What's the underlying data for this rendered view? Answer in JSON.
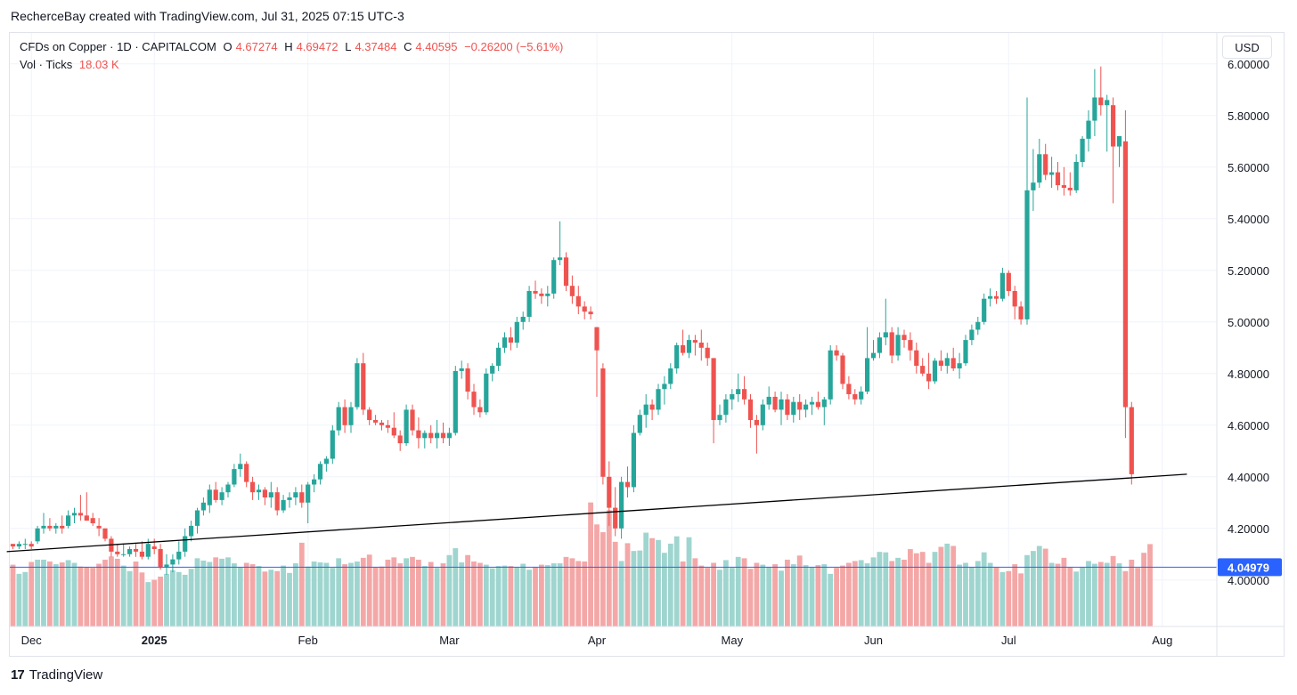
{
  "caption": "RecherceBay created with TradingView.com, Jul 31, 2025 07:15 UTC-3",
  "legend": {
    "symbol": "CFDs on Copper · 1D · CAPITALCOM",
    "o_label": "O",
    "o_value": "4.67274",
    "h_label": "H",
    "h_value": "4.69472",
    "l_label": "L",
    "l_value": "4.37484",
    "c_label": "C",
    "c_value": "4.40595",
    "change": "−0.26200 (−5.61%)",
    "vol_label": "Vol · Ticks",
    "vol_value": "18.03 K"
  },
  "currency": "USD",
  "footer": {
    "logo_mark": "17",
    "brand": "TradingView"
  },
  "colors": {
    "up": "#26a69a",
    "down": "#ef5350",
    "up_vol": "#9fd5cf",
    "down_vol": "#f4a7a7",
    "line_blue": "#2962ff",
    "trend": "#000000"
  },
  "chart_data": {
    "type": "candlestick",
    "title": "CFDs on Copper · 1D · CAPITALCOM",
    "ylim": [
      3.82,
      6.12
    ],
    "y_ticks": [
      "6.00000",
      "5.80000",
      "5.60000",
      "5.40000",
      "5.20000",
      "5.00000",
      "4.80000",
      "4.60000",
      "4.40000",
      "4.20000",
      "4.00000"
    ],
    "y_tick_values": [
      6.0,
      5.8,
      5.6,
      5.4,
      5.2,
      5.0,
      4.8,
      4.6,
      4.4,
      4.2,
      4.0
    ],
    "x_labels": [
      "Dec",
      "2025",
      "Feb",
      "Mar",
      "Apr",
      "May",
      "Jun",
      "Jul",
      "Aug"
    ],
    "x_label_bars": [
      3,
      23,
      48,
      71,
      95,
      117,
      140,
      162,
      187
    ],
    "price_line": {
      "value": 4.04979,
      "label": "4.04979"
    },
    "trendline": {
      "start_bar": -1,
      "start_value": 4.11,
      "end_bar": 191,
      "end_value": 4.41
    },
    "candles": [
      [
        4.14,
        4.14,
        4.12,
        4.13
      ],
      [
        4.13,
        4.15,
        4.12,
        4.14
      ],
      [
        4.14,
        4.16,
        4.12,
        4.14
      ],
      [
        4.14,
        4.15,
        4.12,
        4.13
      ],
      [
        4.15,
        4.21,
        4.14,
        4.2
      ],
      [
        4.2,
        4.26,
        4.18,
        4.21
      ],
      [
        4.21,
        4.24,
        4.19,
        4.2
      ],
      [
        4.2,
        4.22,
        4.18,
        4.21
      ],
      [
        4.21,
        4.25,
        4.18,
        4.2
      ],
      [
        4.21,
        4.27,
        4.2,
        4.25
      ],
      [
        4.25,
        4.28,
        4.22,
        4.26
      ],
      [
        4.26,
        4.33,
        4.23,
        4.25
      ],
      [
        4.25,
        4.34,
        4.23,
        4.23
      ],
      [
        4.24,
        4.26,
        4.21,
        4.22
      ],
      [
        4.21,
        4.24,
        4.17,
        4.2
      ],
      [
        4.2,
        4.2,
        4.15,
        4.16
      ],
      [
        4.16,
        4.17,
        4.09,
        4.11
      ],
      [
        4.11,
        4.14,
        4.09,
        4.1
      ],
      [
        4.1,
        4.14,
        4.09,
        4.1
      ],
      [
        4.1,
        4.13,
        4.09,
        4.12
      ],
      [
        4.12,
        4.14,
        4.09,
        4.11
      ],
      [
        4.11,
        4.15,
        4.08,
        4.09
      ],
      [
        4.09,
        4.16,
        4.08,
        4.14
      ],
      [
        4.13,
        4.16,
        4.1,
        4.12
      ],
      [
        4.12,
        4.14,
        4.04,
        4.05
      ],
      [
        4.05,
        4.1,
        4.02,
        4.06
      ],
      [
        4.06,
        4.1,
        4.03,
        4.08
      ],
      [
        4.08,
        4.15,
        4.06,
        4.11
      ],
      [
        4.11,
        4.2,
        4.09,
        4.17
      ],
      [
        4.17,
        4.23,
        4.15,
        4.21
      ],
      [
        4.21,
        4.28,
        4.18,
        4.27
      ],
      [
        4.27,
        4.32,
        4.25,
        4.3
      ],
      [
        4.29,
        4.37,
        4.26,
        4.35
      ],
      [
        4.35,
        4.38,
        4.3,
        4.31
      ],
      [
        4.31,
        4.36,
        4.29,
        4.34
      ],
      [
        4.34,
        4.38,
        4.32,
        4.37
      ],
      [
        4.37,
        4.45,
        4.36,
        4.43
      ],
      [
        4.43,
        4.49,
        4.4,
        4.45
      ],
      [
        4.45,
        4.46,
        4.36,
        4.38
      ],
      [
        4.38,
        4.4,
        4.31,
        4.34
      ],
      [
        4.34,
        4.37,
        4.31,
        4.35
      ],
      [
        4.35,
        4.36,
        4.29,
        4.32
      ],
      [
        4.32,
        4.38,
        4.28,
        4.34
      ],
      [
        4.34,
        4.36,
        4.25,
        4.27
      ],
      [
        4.27,
        4.33,
        4.26,
        4.31
      ],
      [
        4.31,
        4.34,
        4.28,
        4.32
      ],
      [
        4.32,
        4.36,
        4.29,
        4.34
      ],
      [
        4.34,
        4.37,
        4.28,
        4.3
      ],
      [
        4.3,
        4.38,
        4.22,
        4.37
      ],
      [
        4.37,
        4.41,
        4.34,
        4.39
      ],
      [
        4.39,
        4.46,
        4.37,
        4.45
      ],
      [
        4.45,
        4.48,
        4.42,
        4.47
      ],
      [
        4.47,
        4.6,
        4.45,
        4.58
      ],
      [
        4.58,
        4.69,
        4.56,
        4.67
      ],
      [
        4.67,
        4.7,
        4.57,
        4.6
      ],
      [
        4.6,
        4.69,
        4.57,
        4.67
      ],
      [
        4.67,
        4.86,
        4.66,
        4.84
      ],
      [
        4.84,
        4.88,
        4.64,
        4.66
      ],
      [
        4.66,
        4.67,
        4.6,
        4.62
      ],
      [
        4.62,
        4.64,
        4.6,
        4.61
      ],
      [
        4.61,
        4.62,
        4.58,
        4.6
      ],
      [
        4.6,
        4.62,
        4.57,
        4.59
      ],
      [
        4.59,
        4.65,
        4.55,
        4.56
      ],
      [
        4.56,
        4.58,
        4.5,
        4.53
      ],
      [
        4.53,
        4.68,
        4.52,
        4.66
      ],
      [
        4.66,
        4.68,
        4.56,
        4.58
      ],
      [
        4.58,
        4.63,
        4.51,
        4.55
      ],
      [
        4.55,
        4.58,
        4.51,
        4.57
      ],
      [
        4.57,
        4.6,
        4.53,
        4.55
      ],
      [
        4.55,
        4.62,
        4.51,
        4.57
      ],
      [
        4.57,
        4.61,
        4.53,
        4.55
      ],
      [
        4.55,
        4.59,
        4.52,
        4.57
      ],
      [
        4.57,
        4.83,
        4.56,
        4.81
      ],
      [
        4.81,
        4.85,
        4.78,
        4.82
      ],
      [
        4.82,
        4.84,
        4.7,
        4.73
      ],
      [
        4.73,
        4.76,
        4.64,
        4.67
      ],
      [
        4.67,
        4.7,
        4.63,
        4.65
      ],
      [
        4.65,
        4.82,
        4.64,
        4.8
      ],
      [
        4.8,
        4.84,
        4.77,
        4.83
      ],
      [
        4.83,
        4.92,
        4.81,
        4.9
      ],
      [
        4.9,
        4.96,
        4.88,
        4.94
      ],
      [
        4.94,
        4.98,
        4.89,
        4.92
      ],
      [
        4.92,
        5.02,
        4.9,
        5.0
      ],
      [
        5.0,
        5.04,
        4.97,
        5.02
      ],
      [
        5.02,
        5.14,
        5.0,
        5.12
      ],
      [
        5.12,
        5.16,
        5.09,
        5.11
      ],
      [
        5.11,
        5.13,
        5.07,
        5.1
      ],
      [
        5.1,
        5.14,
        5.06,
        5.11
      ],
      [
        5.11,
        5.25,
        5.09,
        5.24
      ],
      [
        5.24,
        5.39,
        5.22,
        5.25
      ],
      [
        5.25,
        5.27,
        5.12,
        5.14
      ],
      [
        5.14,
        5.18,
        5.07,
        5.1
      ],
      [
        5.1,
        5.14,
        5.03,
        5.06
      ],
      [
        5.06,
        5.08,
        5.01,
        5.04
      ],
      [
        5.04,
        5.06,
        5.01,
        5.03
      ],
      [
        4.98,
        4.98,
        4.71,
        4.89
      ],
      [
        4.82,
        4.84,
        4.37,
        4.4
      ],
      [
        4.4,
        4.46,
        4.21,
        4.28
      ],
      [
        4.28,
        4.36,
        4.17,
        4.2
      ],
      [
        4.2,
        4.4,
        4.16,
        4.38
      ],
      [
        4.38,
        4.44,
        4.32,
        4.36
      ],
      [
        4.36,
        4.6,
        4.34,
        4.57
      ],
      [
        4.57,
        4.66,
        4.56,
        4.64
      ],
      [
        4.64,
        4.72,
        4.59,
        4.68
      ],
      [
        4.68,
        4.7,
        4.62,
        4.66
      ],
      [
        4.66,
        4.76,
        4.64,
        4.74
      ],
      [
        4.74,
        4.79,
        4.68,
        4.76
      ],
      [
        4.76,
        4.84,
        4.74,
        4.82
      ],
      [
        4.82,
        4.92,
        4.8,
        4.91
      ],
      [
        4.91,
        4.97,
        4.87,
        4.88
      ],
      [
        4.88,
        4.95,
        4.86,
        4.93
      ],
      [
        4.93,
        4.95,
        4.87,
        4.92
      ],
      [
        4.92,
        4.97,
        4.85,
        4.9
      ],
      [
        4.9,
        4.92,
        4.83,
        4.86
      ],
      [
        4.86,
        4.86,
        4.53,
        4.62
      ],
      [
        4.62,
        4.68,
        4.6,
        4.64
      ],
      [
        4.64,
        4.72,
        4.61,
        4.7
      ],
      [
        4.7,
        4.74,
        4.66,
        4.72
      ],
      [
        4.72,
        4.8,
        4.69,
        4.74
      ],
      [
        4.74,
        4.79,
        4.68,
        4.7
      ],
      [
        4.7,
        4.72,
        4.59,
        4.62
      ],
      [
        4.62,
        4.64,
        4.49,
        4.6
      ],
      [
        4.6,
        4.7,
        4.58,
        4.68
      ],
      [
        4.68,
        4.75,
        4.66,
        4.71
      ],
      [
        4.71,
        4.73,
        4.65,
        4.66
      ],
      [
        4.66,
        4.73,
        4.6,
        4.7
      ],
      [
        4.7,
        4.72,
        4.62,
        4.64
      ],
      [
        4.64,
        4.71,
        4.61,
        4.69
      ],
      [
        4.69,
        4.72,
        4.62,
        4.66
      ],
      [
        4.66,
        4.7,
        4.63,
        4.68
      ],
      [
        4.68,
        4.71,
        4.64,
        4.69
      ],
      [
        4.69,
        4.73,
        4.66,
        4.67
      ],
      [
        4.67,
        4.71,
        4.6,
        4.7
      ],
      [
        4.7,
        4.91,
        4.68,
        4.89
      ],
      [
        4.89,
        4.91,
        4.85,
        4.87
      ],
      [
        4.87,
        4.88,
        4.74,
        4.76
      ],
      [
        4.76,
        4.79,
        4.7,
        4.72
      ],
      [
        4.72,
        4.74,
        4.68,
        4.7
      ],
      [
        4.7,
        4.75,
        4.68,
        4.73
      ],
      [
        4.73,
        4.98,
        4.72,
        4.86
      ],
      [
        4.86,
        4.93,
        4.85,
        4.88
      ],
      [
        4.88,
        4.96,
        4.86,
        4.94
      ],
      [
        4.94,
        5.09,
        4.91,
        4.96
      ],
      [
        4.96,
        4.98,
        4.84,
        4.87
      ],
      [
        4.87,
        4.98,
        4.85,
        4.95
      ],
      [
        4.95,
        4.97,
        4.9,
        4.93
      ],
      [
        4.93,
        4.96,
        4.85,
        4.89
      ],
      [
        4.89,
        4.92,
        4.8,
        4.83
      ],
      [
        4.83,
        4.86,
        4.79,
        4.8
      ],
      [
        4.8,
        4.88,
        4.74,
        4.77
      ],
      [
        4.77,
        4.86,
        4.76,
        4.85
      ],
      [
        4.85,
        4.89,
        4.81,
        4.83
      ],
      [
        4.83,
        4.88,
        4.8,
        4.86
      ],
      [
        4.86,
        4.9,
        4.81,
        4.82
      ],
      [
        4.82,
        4.88,
        4.78,
        4.84
      ],
      [
        4.84,
        4.95,
        4.83,
        4.93
      ],
      [
        4.93,
        4.99,
        4.91,
        4.97
      ],
      [
        4.97,
        5.02,
        4.95,
        5.0
      ],
      [
        5.0,
        5.11,
        4.99,
        5.09
      ],
      [
        5.09,
        5.13,
        5.06,
        5.1
      ],
      [
        5.1,
        5.12,
        5.07,
        5.09
      ],
      [
        5.09,
        5.21,
        5.08,
        5.19
      ],
      [
        5.19,
        5.2,
        5.1,
        5.12
      ],
      [
        5.12,
        5.14,
        5.01,
        5.06
      ],
      [
        5.06,
        5.08,
        4.99,
        5.01
      ],
      [
        5.01,
        5.87,
        4.99,
        5.51
      ],
      [
        5.51,
        5.67,
        5.43,
        5.54
      ],
      [
        5.54,
        5.71,
        5.52,
        5.65
      ],
      [
        5.65,
        5.69,
        5.55,
        5.57
      ],
      [
        5.57,
        5.64,
        5.52,
        5.58
      ],
      [
        5.58,
        5.62,
        5.51,
        5.53
      ],
      [
        5.53,
        5.6,
        5.49,
        5.52
      ],
      [
        5.52,
        5.58,
        5.49,
        5.51
      ],
      [
        5.51,
        5.65,
        5.5,
        5.62
      ],
      [
        5.62,
        5.72,
        5.6,
        5.71
      ],
      [
        5.71,
        5.82,
        5.66,
        5.78
      ],
      [
        5.78,
        5.98,
        5.72,
        5.87
      ],
      [
        5.87,
        5.99,
        5.8,
        5.84
      ],
      [
        5.84,
        5.88,
        5.66,
        5.86
      ],
      [
        5.84,
        5.87,
        5.46,
        5.68
      ],
      [
        5.68,
        5.72,
        5.6,
        5.72
      ],
      [
        5.7,
        5.82,
        4.55,
        4.67
      ],
      [
        4.67,
        4.69,
        4.37,
        4.41
      ]
    ],
    "volumes": [
      13.5,
      11.5,
      11.9,
      14.1,
      14.6,
      14.6,
      14.2,
      13.6,
      14.0,
      14.5,
      13.9,
      13.1,
      13.0,
      12.8,
      13.7,
      14.6,
      15.3,
      14.8,
      13.3,
      12.1,
      14.2,
      11.8,
      9.7,
      10.2,
      10.9,
      11.5,
      12.3,
      11.9,
      11.3,
      12.6,
      14.9,
      14.4,
      14.1,
      15.1,
      14.8,
      15.1,
      13.8,
      13.0,
      13.9,
      13.6,
      13.2,
      12.0,
      12.4,
      12.1,
      13.3,
      11.7,
      13.8,
      18.3,
      13.1,
      14.2,
      14.0,
      13.9,
      12.8,
      14.9,
      13.6,
      13.9,
      14.2,
      15.0,
      15.7,
      12.9,
      13.1,
      14.6,
      15.1,
      13.8,
      14.9,
      15.2,
      14.6,
      13.2,
      14.1,
      12.8,
      13.8,
      15.6,
      17.1,
      14.0,
      15.6,
      14.2,
      13.9,
      13.5,
      12.7,
      13.2,
      13.3,
      13.2,
      12.9,
      13.7,
      12.4,
      12.9,
      13.5,
      13.4,
      13.8,
      13.8,
      15.2,
      14.9,
      14.3,
      14.2,
      27.1,
      22.3,
      20.6,
      25.4,
      18.5,
      14.3,
      18.2,
      16.5,
      16.6,
      20.5,
      19.3,
      18.9,
      16.1,
      18.1,
      19.7,
      14.2,
      19.5,
      14.9,
      13.3,
      12.8,
      13.9,
      12.4,
      14.5,
      12.8,
      15.2,
      14.9,
      12.6,
      13.9,
      13.5,
      12.9,
      13.6,
      12.2,
      14.6,
      13.6,
      15.5,
      13.4,
      12.9,
      13.4,
      13.6,
      11.5,
      12.8,
      13.3,
      13.9,
      14.3,
      14.5,
      13.8,
      15.1,
      16.3,
      16.2,
      14.3,
      15.0,
      14.6,
      16.9,
      16.0,
      16.3,
      13.9,
      16.3,
      17.4,
      18.1,
      17.6,
      13.5,
      13.9,
      13.0,
      14.3,
      16.2,
      13.9,
      12.9,
      11.9,
      12.1,
      13.6,
      11.6,
      15.6,
      16.5,
      17.6,
      17.0,
      13.9,
      13.7,
      15.0,
      12.9,
      12.0,
      12.9,
      14.3,
      13.7,
      14.1,
      13.9,
      15.4,
      13.8,
      12.1,
      14.6,
      12.8,
      16.1,
      18.0
    ],
    "volume_axis_max": 28
  }
}
